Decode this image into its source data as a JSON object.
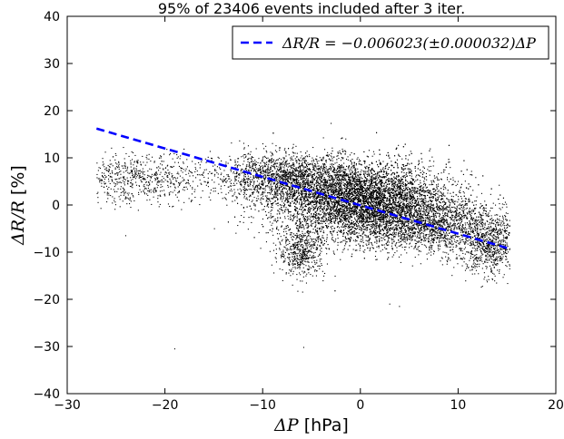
{
  "chart_data": {
    "type": "scatter",
    "title": "95% of 23406 events included after 3 iter.",
    "xlabel": {
      "symbol": "ΔP",
      "unit": "[hPa]"
    },
    "ylabel": {
      "symbol": "ΔR/R",
      "unit": "[%]"
    },
    "xlim": [
      -30,
      20
    ],
    "ylim": [
      -40,
      40
    ],
    "xticks": [
      -30,
      -20,
      -10,
      0,
      10,
      20
    ],
    "yticks": [
      -40,
      -30,
      -20,
      -10,
      0,
      10,
      20,
      30,
      40
    ],
    "xtick_labels": [
      "−30",
      "−20",
      "−10",
      "0",
      "10",
      "20"
    ],
    "ytick_labels": [
      "−40",
      "−30",
      "−20",
      "−10",
      "0",
      "10",
      "20",
      "30",
      "40"
    ],
    "legend": {
      "position": "top-right",
      "label": "ΔR/R = −0.006023(±0.000032)ΔP"
    },
    "fit": {
      "style": "dashed",
      "color": "#0000ff",
      "slope_percent_per_hpa": -0.6023,
      "x": [
        -27,
        15
      ],
      "y": [
        16.2,
        -9.1
      ]
    },
    "scatter": {
      "color": "#000000",
      "n_events": 23406,
      "clusters": [
        {
          "x_mean": 0,
          "x_sd": 4.5,
          "y_mean": 1.0,
          "y_sd": 4.0,
          "weight": 0.6
        },
        {
          "x_mean": 7,
          "x_sd": 4.0,
          "y_mean": -4.5,
          "y_sd": 3.0,
          "weight": 0.14
        },
        {
          "x_mean": -8,
          "x_sd": 3.5,
          "y_mean": 6.0,
          "y_sd": 2.5,
          "weight": 0.12
        },
        {
          "x_mean": 13,
          "x_sd": 1.5,
          "y_mean": -9.0,
          "y_sd": 3.0,
          "weight": 0.05
        },
        {
          "x_mean": -22,
          "x_sd": 3.5,
          "y_mean": 5.5,
          "y_sd": 2.5,
          "weight": 0.05
        },
        {
          "x_mean": -6,
          "x_sd": 1.2,
          "y_mean": -10.0,
          "y_sd": 2.5,
          "weight": 0.04
        }
      ],
      "outliers": [
        {
          "x": -19,
          "y": -30.5
        },
        {
          "x": -5.8,
          "y": -30.2
        },
        {
          "x": -3,
          "y": 17.3
        },
        {
          "x": -1.5,
          "y": 14.0
        },
        {
          "x": 3,
          "y": -21.0
        },
        {
          "x": 4,
          "y": -21.5
        },
        {
          "x": -4.5,
          "y": -15.0
        },
        {
          "x": -25,
          "y": 10.5
        }
      ]
    }
  }
}
